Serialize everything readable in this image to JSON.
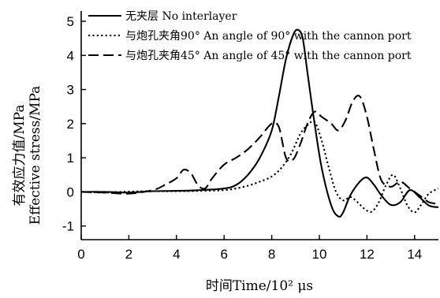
{
  "chart_data": {
    "type": "line",
    "xlabel": "时间Time/10² μs",
    "ylabel_cn": "有效应力值/MPa",
    "ylabel_en": "Effective stress/MPa",
    "xlim": [
      0,
      15
    ],
    "ylim": [
      -1.4,
      5.3
    ],
    "xticks": [
      0,
      2,
      4,
      6,
      8,
      10,
      12,
      14
    ],
    "yticks": [
      -1,
      0,
      1,
      2,
      3,
      4,
      5
    ],
    "legend_position": "top-right",
    "series": [
      {
        "name": "无夹层 No interlayer",
        "dash": "solid",
        "x": [
          0,
          1,
          2,
          3,
          4,
          5,
          6,
          6.5,
          7,
          7.5,
          8,
          8.3,
          8.6,
          8.9,
          9.1,
          9.3,
          9.5,
          9.8,
          10.1,
          10.5,
          10.8,
          11.0,
          11.3,
          11.7,
          12.0,
          12.3,
          12.6,
          13.0,
          13.4,
          13.8,
          14.2,
          14.6,
          15
        ],
        "y": [
          0,
          0,
          -0.02,
          0.02,
          0.03,
          0.05,
          0.1,
          0.2,
          0.5,
          1.0,
          1.8,
          2.8,
          3.9,
          4.6,
          4.75,
          4.5,
          3.5,
          2.0,
          0.7,
          -0.4,
          -0.72,
          -0.6,
          -0.1,
          0.3,
          0.42,
          0.2,
          -0.1,
          -0.38,
          -0.3,
          0.05,
          -0.15,
          -0.4,
          -0.45
        ]
      },
      {
        "name": "与炮孔夹角90° An angle of 90° with the cannon port",
        "dash": "dotted",
        "x": [
          0,
          1,
          2,
          3,
          4,
          5,
          6,
          6.5,
          7,
          7.5,
          8,
          8.4,
          8.8,
          9.2,
          9.5,
          9.8,
          10.1,
          10.4,
          10.7,
          11.0,
          11.3,
          11.6,
          11.9,
          12.2,
          12.5,
          12.8,
          13.1,
          13.4,
          13.7,
          14.0,
          14.3,
          14.6,
          15
        ],
        "y": [
          0,
          -0.02,
          0.01,
          0.02,
          0.02,
          0.03,
          0.05,
          0.1,
          0.18,
          0.3,
          0.45,
          0.7,
          1.1,
          1.7,
          1.95,
          2.05,
          1.5,
          0.7,
          0.0,
          -0.25,
          -0.15,
          -0.3,
          -0.5,
          -0.58,
          -0.3,
          0.2,
          0.5,
          0.1,
          -0.4,
          -0.6,
          -0.35,
          -0.05,
          0.1
        ]
      },
      {
        "name": "与炮孔夹角45° An angle of 45° with the cannon port",
        "dash": "dashed",
        "x": [
          0,
          1,
          2,
          3,
          3.5,
          4,
          4.3,
          4.6,
          4.9,
          5.2,
          5.5,
          6.0,
          6.5,
          7.0,
          7.5,
          8.0,
          8.3,
          8.6,
          8.9,
          9.2,
          9.5,
          9.8,
          10.1,
          10.5,
          10.8,
          11.1,
          11.4,
          11.7,
          12.0,
          12.3,
          12.6,
          13.0,
          13.4,
          13.8,
          14.2,
          14.6,
          15
        ],
        "y": [
          0,
          -0.02,
          -0.05,
          0.05,
          0.2,
          0.4,
          0.65,
          0.55,
          0.2,
          0.1,
          0.4,
          0.8,
          1.0,
          1.25,
          1.6,
          2.0,
          1.9,
          1.0,
          0.95,
          1.4,
          2.0,
          2.35,
          2.2,
          2.0,
          1.8,
          2.1,
          2.65,
          2.8,
          2.2,
          1.2,
          0.35,
          0.15,
          0.3,
          0.1,
          -0.1,
          -0.3,
          -0.35
        ]
      }
    ]
  }
}
